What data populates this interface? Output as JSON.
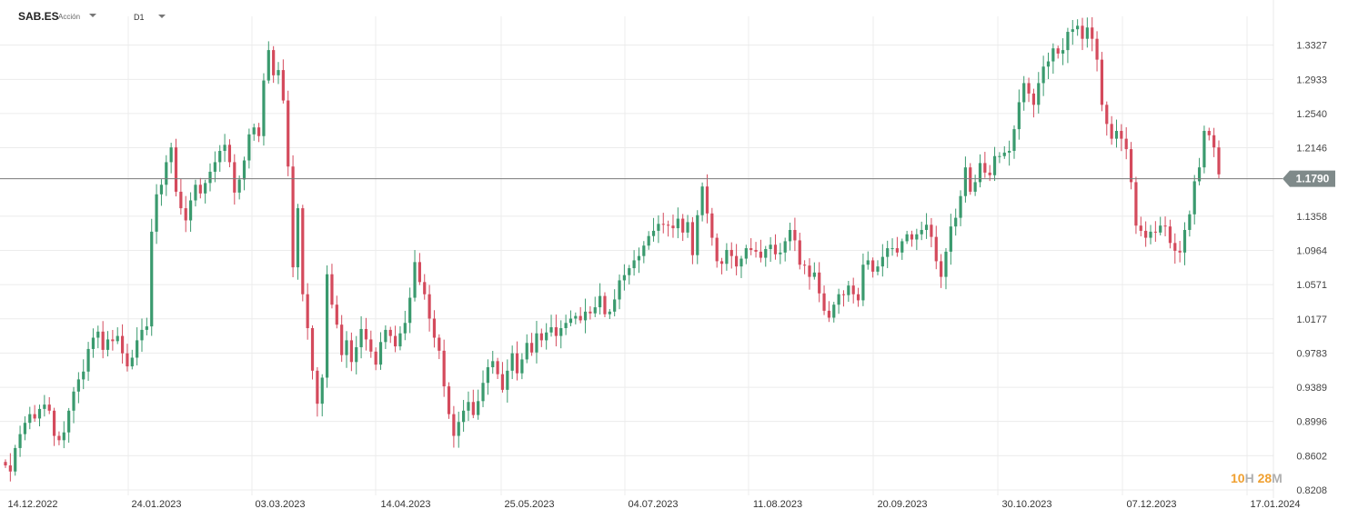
{
  "header": {
    "symbol": "SAB.ES",
    "type": "Acción",
    "timeframe": "D1"
  },
  "countdown": {
    "h": "10",
    "h_unit": "H",
    "m": "28",
    "m_unit": "M"
  },
  "colors": {
    "up": "#3a9a6e",
    "down": "#d44a5c",
    "grid": "#ececec",
    "price_line": "#7a7a7a",
    "price_tag": "#7f8a8a"
  },
  "chart_data": {
    "type": "candlestick",
    "ylim": [
      0.8208,
      1.3721
    ],
    "y_ticks": [
      "1.3327",
      "1.2933",
      "1.2540",
      "1.2146",
      "1.1790",
      "1.1358",
      "1.0964",
      "1.0571",
      "1.0177",
      "0.9783",
      "0.9389",
      "0.8996",
      "0.8602",
      "0.8208"
    ],
    "x_ticks": [
      "14.12.2022",
      "24.01.2023",
      "03.03.2023",
      "14.04.2023",
      "25.05.2023",
      "04.07.2023",
      "11.08.2023",
      "20.09.2023",
      "30.10.2023",
      "07.12.2023",
      "17.01.2024"
    ],
    "current_price": 1.179,
    "current_price_label": "1.1790",
    "grid": true,
    "closes": [
      0.849,
      0.842,
      0.869,
      0.885,
      0.898,
      0.908,
      0.903,
      0.914,
      0.919,
      0.912,
      0.883,
      0.878,
      0.887,
      0.912,
      0.934,
      0.948,
      0.957,
      0.983,
      0.996,
      1.003,
      0.982,
      0.994,
      0.992,
      0.998,
      0.978,
      0.963,
      0.973,
      0.993,
      1.005,
      1.009,
      1.118,
      1.161,
      1.172,
      1.198,
      1.215,
      1.164,
      1.145,
      1.131,
      1.154,
      1.172,
      1.162,
      1.174,
      1.187,
      1.198,
      1.211,
      1.218,
      1.198,
      1.163,
      1.178,
      1.2,
      1.23,
      1.238,
      1.228,
      1.292,
      1.327,
      1.298,
      1.304,
      1.269,
      1.193,
      1.077,
      1.145,
      1.046,
      1.007,
      0.958,
      0.92,
      0.95,
      1.069,
      1.034,
      1.011,
      0.976,
      0.993,
      0.968,
      0.985,
      1.006,
      0.994,
      0.98,
      0.965,
      0.991,
      1.005,
      0.998,
      0.986,
      1.001,
      1.013,
      1.042,
      1.083,
      1.06,
      1.046,
      1.018,
      0.996,
      0.981,
      0.94,
      0.908,
      0.883,
      0.899,
      0.912,
      0.922,
      0.907,
      0.923,
      0.944,
      0.962,
      0.969,
      0.954,
      0.936,
      0.958,
      0.978,
      0.955,
      0.971,
      0.99,
      0.979,
      1.001,
      0.993,
      1.002,
      1.008,
      0.998,
      1.007,
      1.013,
      1.018,
      1.021,
      1.016,
      1.026,
      1.024,
      1.031,
      1.044,
      1.023,
      1.026,
      1.04,
      1.062,
      1.068,
      1.076,
      1.085,
      1.09,
      1.102,
      1.113,
      1.119,
      1.127,
      1.126,
      1.125,
      1.122,
      1.133,
      1.117,
      1.129,
      1.091,
      1.137,
      1.17,
      1.139,
      1.111,
      1.084,
      1.081,
      1.097,
      1.09,
      1.078,
      1.087,
      1.099,
      1.097,
      1.095,
      1.088,
      1.098,
      1.103,
      1.092,
      1.094,
      1.107,
      1.12,
      1.108,
      1.08,
      1.079,
      1.066,
      1.071,
      1.047,
      1.027,
      1.019,
      1.034,
      1.046,
      1.045,
      1.056,
      1.046,
      1.039,
      1.08,
      1.085,
      1.072,
      1.078,
      1.089,
      1.099,
      1.099,
      1.094,
      1.107,
      1.115,
      1.109,
      1.115,
      1.12,
      1.126,
      1.112,
      1.084,
      1.066,
      1.095,
      1.124,
      1.134,
      1.159,
      1.192,
      1.164,
      1.175,
      1.197,
      1.186,
      1.183,
      1.205,
      1.205,
      1.209,
      1.211,
      1.236,
      1.267,
      1.289,
      1.277,
      1.264,
      1.289,
      1.308,
      1.314,
      1.329,
      1.323,
      1.327,
      1.348,
      1.351,
      1.355,
      1.34,
      1.353,
      1.34,
      1.316,
      1.264,
      1.242,
      1.225,
      1.234,
      1.225,
      1.213,
      1.175,
      1.125,
      1.119,
      1.111,
      1.118,
      1.117,
      1.125,
      1.124,
      1.105,
      1.096,
      1.094,
      1.12,
      1.138,
      1.176,
      1.192,
      1.234,
      1.229,
      1.215,
      1.184
    ],
    "opens_first": 0.853
  }
}
